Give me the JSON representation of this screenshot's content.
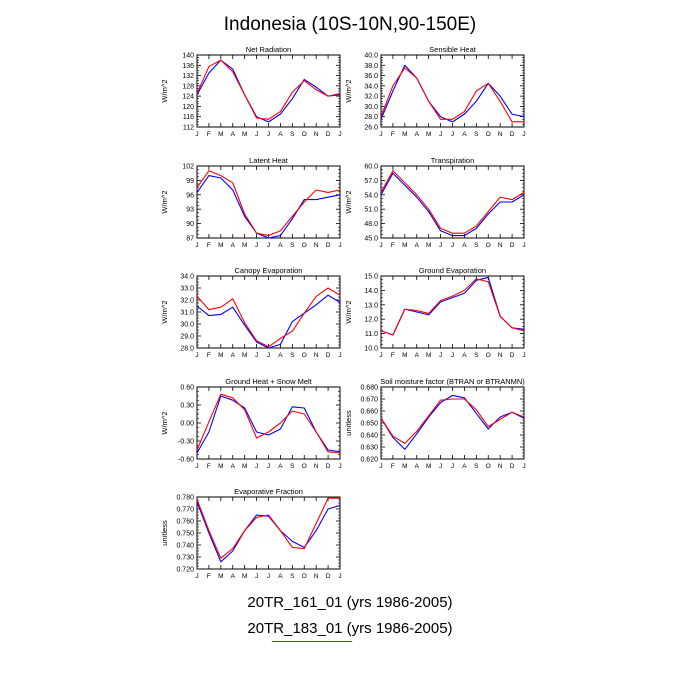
{
  "title": "Indonesia (10S-10N,90-150E)",
  "months": [
    "J",
    "F",
    "M",
    "A",
    "M",
    "J",
    "J",
    "A",
    "S",
    "O",
    "N",
    "D",
    "J"
  ],
  "legend": [
    {
      "label": "20TR_161_01 (yrs 1986-2005)",
      "color": "#0000ff"
    },
    {
      "label": "20TR_183_01 (yrs 1986-2005)",
      "color": "#ff0000"
    }
  ],
  "chart_data": [
    {
      "type": "line",
      "title": "Net Radiation",
      "ylabel": "W/m^2",
      "ylim": [
        112,
        140
      ],
      "yticks": [
        "112",
        "116",
        "120",
        "124",
        "128",
        "132",
        "136",
        "140"
      ],
      "series": [
        {
          "color": "#0000ff",
          "values": [
            124.5,
            133.0,
            138.0,
            134.5,
            124.5,
            116.0,
            114.0,
            117.0,
            123.0,
            130.5,
            127.5,
            124.0,
            124.5
          ]
        },
        {
          "color": "#ff0000",
          "values": [
            125.0,
            135.5,
            138.0,
            133.5,
            124.5,
            115.5,
            115.0,
            118.0,
            125.5,
            130.0,
            126.5,
            124.0,
            125.0
          ]
        }
      ]
    },
    {
      "type": "line",
      "title": "Sensible Heat",
      "ylabel": "W/m^2",
      "ylim": [
        26,
        40
      ],
      "yticks": [
        "26.0",
        "28.0",
        "30.0",
        "32.0",
        "34.0",
        "36.0",
        "38.0",
        "40.0"
      ],
      "series": [
        {
          "color": "#0000ff",
          "values": [
            27.5,
            33.0,
            38.0,
            35.5,
            31.0,
            28.0,
            27.0,
            28.5,
            31.0,
            34.5,
            32.0,
            28.5,
            28.0
          ]
        },
        {
          "color": "#ff0000",
          "values": [
            28.0,
            34.0,
            37.5,
            35.5,
            31.0,
            27.5,
            27.5,
            29.0,
            33.0,
            34.5,
            31.0,
            27.0,
            27.0
          ]
        }
      ]
    },
    {
      "type": "line",
      "title": "Latent Heat",
      "ylabel": "W/m^2",
      "ylim": [
        87,
        102
      ],
      "yticks": [
        "87",
        "90",
        "93",
        "96",
        "99",
        "102"
      ],
      "series": [
        {
          "color": "#0000ff",
          "values": [
            96.5,
            100.0,
            99.5,
            97.0,
            91.5,
            88.0,
            87.0,
            87.5,
            91.0,
            95.0,
            95.0,
            95.5,
            96.0
          ]
        },
        {
          "color": "#ff0000",
          "values": [
            97.5,
            101.0,
            100.0,
            98.5,
            92.0,
            88.0,
            87.5,
            88.5,
            91.5,
            94.5,
            97.0,
            96.5,
            97.0
          ]
        }
      ]
    },
    {
      "type": "line",
      "title": "Transpiration",
      "ylabel": "W/m^2",
      "ylim": [
        45,
        60
      ],
      "yticks": [
        "45.0",
        "48.0",
        "51.0",
        "54.0",
        "57.0",
        "60.0"
      ],
      "series": [
        {
          "color": "#0000ff",
          "values": [
            54.0,
            58.5,
            56.0,
            53.5,
            50.5,
            46.5,
            45.5,
            45.5,
            47.0,
            50.0,
            52.5,
            52.5,
            54.0
          ]
        },
        {
          "color": "#ff0000",
          "values": [
            54.5,
            59.0,
            56.5,
            54.0,
            51.0,
            47.0,
            46.0,
            46.0,
            47.5,
            50.5,
            53.5,
            53.0,
            54.5
          ]
        }
      ]
    },
    {
      "type": "line",
      "title": "Canopy Evaporation",
      "ylabel": "W/m^2",
      "ylim": [
        28,
        34
      ],
      "yticks": [
        "28.0",
        "29.0",
        "30.0",
        "31.0",
        "32.0",
        "33.0",
        "34.0"
      ],
      "series": [
        {
          "color": "#0000ff",
          "values": [
            31.5,
            30.7,
            30.8,
            31.4,
            29.9,
            28.5,
            28.0,
            28.3,
            30.2,
            30.9,
            31.6,
            32.4,
            31.8
          ]
        },
        {
          "color": "#ff0000",
          "values": [
            32.3,
            31.2,
            31.4,
            32.1,
            30.1,
            28.6,
            28.1,
            28.8,
            29.4,
            30.9,
            32.3,
            33.0,
            32.4
          ]
        }
      ]
    },
    {
      "type": "line",
      "title": "Ground Evaporation",
      "ylabel": "W/m^2",
      "ylim": [
        10,
        15
      ],
      "yticks": [
        "10.0",
        "11.0",
        "12.0",
        "13.0",
        "14.0",
        "15.0"
      ],
      "series": [
        {
          "color": "#0000ff",
          "values": [
            11.2,
            10.9,
            12.7,
            12.5,
            12.3,
            13.2,
            13.5,
            13.8,
            14.7,
            14.9,
            12.2,
            11.4,
            11.3
          ]
        },
        {
          "color": "#ff0000",
          "values": [
            11.2,
            10.9,
            12.7,
            12.6,
            12.4,
            13.3,
            13.6,
            14.0,
            14.8,
            14.6,
            12.2,
            11.4,
            11.2
          ]
        }
      ]
    },
    {
      "type": "line",
      "title": "Ground Heat + Snow Melt",
      "ylabel": "W/m^2",
      "ylim": [
        -0.6,
        0.6
      ],
      "yticks": [
        "-0.60",
        "-0.30",
        "0.00",
        "0.30",
        "0.60"
      ],
      "series": [
        {
          "color": "#0000ff",
          "values": [
            -0.5,
            -0.15,
            0.45,
            0.38,
            0.25,
            -0.15,
            -0.2,
            -0.1,
            0.27,
            0.25,
            -0.15,
            -0.45,
            -0.48
          ]
        },
        {
          "color": "#ff0000",
          "values": [
            -0.45,
            0.02,
            0.48,
            0.42,
            0.22,
            -0.25,
            -0.15,
            0.0,
            0.2,
            0.15,
            -0.15,
            -0.48,
            -0.5
          ]
        }
      ]
    },
    {
      "type": "line",
      "title": "Soil moisture factor (BTRAN or BTRANMN)",
      "ylabel": "unitless",
      "ylim": [
        0.62,
        0.68
      ],
      "yticks": [
        "0.620",
        "0.630",
        "0.640",
        "0.650",
        "0.660",
        "0.670",
        "0.680"
      ],
      "series": [
        {
          "color": "#0000ff",
          "values": [
            0.654,
            0.638,
            0.628,
            0.641,
            0.655,
            0.667,
            0.673,
            0.671,
            0.658,
            0.645,
            0.655,
            0.659,
            0.654
          ]
        },
        {
          "color": "#ff0000",
          "values": [
            0.654,
            0.639,
            0.633,
            0.643,
            0.656,
            0.669,
            0.67,
            0.67,
            0.661,
            0.647,
            0.653,
            0.659,
            0.655
          ]
        }
      ]
    },
    {
      "type": "line",
      "title": "Evaporative Fraction",
      "ylabel": "unitless",
      "ylim": [
        0.72,
        0.78
      ],
      "yticks": [
        "0.720",
        "0.730",
        "0.740",
        "0.750",
        "0.760",
        "0.770",
        "0.780"
      ],
      "series": [
        {
          "color": "#0000ff",
          "values": [
            0.776,
            0.75,
            0.726,
            0.735,
            0.752,
            0.765,
            0.764,
            0.752,
            0.743,
            0.738,
            0.752,
            0.77,
            0.773
          ]
        },
        {
          "color": "#ff0000",
          "values": [
            0.778,
            0.752,
            0.729,
            0.737,
            0.752,
            0.763,
            0.765,
            0.752,
            0.738,
            0.737,
            0.758,
            0.779,
            0.779
          ]
        }
      ]
    }
  ]
}
